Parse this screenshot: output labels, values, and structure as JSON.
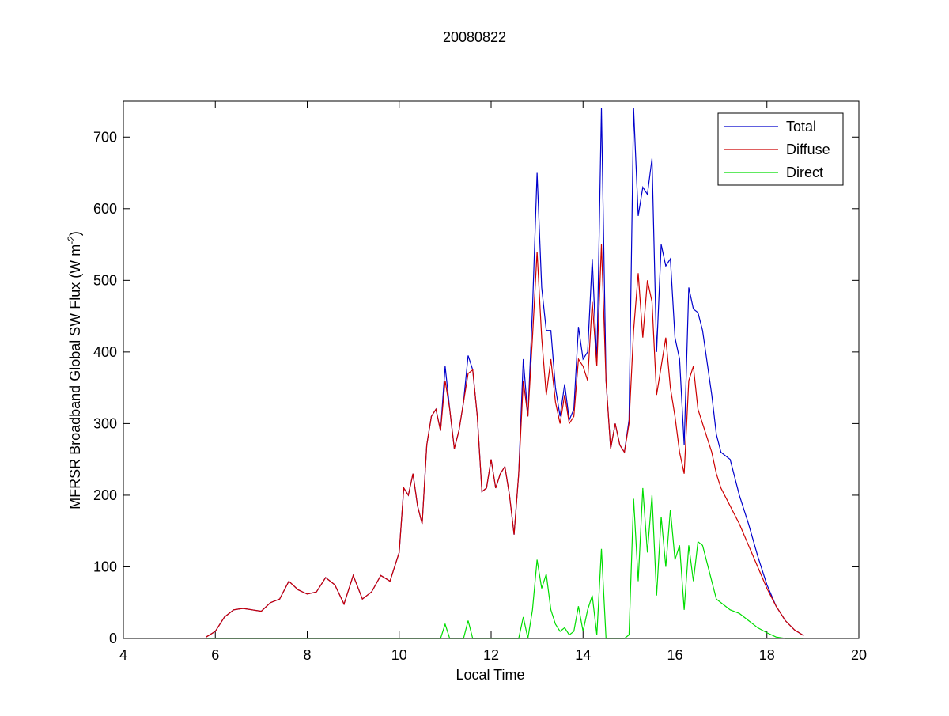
{
  "chart_data": {
    "type": "line",
    "title": "20080822",
    "xlabel": "Local Time",
    "ylabel": {
      "text": "MFRSR Broadband Global SW Flux (W m",
      "superscript": "-2",
      "suffix": ")"
    },
    "xlim": [
      4,
      20
    ],
    "xticks": [
      4,
      6,
      8,
      10,
      12,
      14,
      16,
      18,
      20
    ],
    "ylim": [
      0,
      750
    ],
    "yticks": [
      0,
      100,
      200,
      300,
      400,
      500,
      600,
      700
    ],
    "legend": "top-right",
    "x": [
      5.8,
      6.0,
      6.2,
      6.4,
      6.6,
      6.8,
      7.0,
      7.2,
      7.4,
      7.6,
      7.8,
      8.0,
      8.2,
      8.4,
      8.6,
      8.8,
      9.0,
      9.2,
      9.4,
      9.6,
      9.8,
      10.0,
      10.1,
      10.2,
      10.3,
      10.4,
      10.5,
      10.6,
      10.7,
      10.8,
      10.9,
      11.0,
      11.1,
      11.2,
      11.3,
      11.4,
      11.5,
      11.6,
      11.7,
      11.8,
      11.9,
      12.0,
      12.1,
      12.2,
      12.3,
      12.4,
      12.5,
      12.6,
      12.7,
      12.8,
      12.9,
      13.0,
      13.1,
      13.2,
      13.3,
      13.4,
      13.5,
      13.6,
      13.7,
      13.8,
      13.9,
      14.0,
      14.1,
      14.2,
      14.3,
      14.4,
      14.5,
      14.6,
      14.7,
      14.8,
      14.9,
      15.0,
      15.1,
      15.2,
      15.3,
      15.4,
      15.5,
      15.6,
      15.7,
      15.8,
      15.9,
      16.0,
      16.1,
      16.2,
      16.3,
      16.4,
      16.5,
      16.6,
      16.7,
      16.8,
      16.9,
      17.0,
      17.2,
      17.4,
      17.6,
      17.8,
      18.0,
      18.2,
      18.4,
      18.6,
      18.8
    ],
    "series": [
      {
        "name": "Total",
        "color": "#0000cc",
        "values": [
          2,
          10,
          30,
          40,
          42,
          40,
          38,
          50,
          55,
          80,
          68,
          62,
          65,
          85,
          75,
          48,
          88,
          55,
          65,
          88,
          80,
          120,
          210,
          200,
          230,
          185,
          160,
          270,
          310,
          320,
          290,
          380,
          320,
          265,
          290,
          330,
          395,
          375,
          310,
          205,
          210,
          250,
          210,
          230,
          240,
          200,
          145,
          230,
          390,
          310,
          460,
          650,
          490,
          430,
          430,
          350,
          310,
          355,
          305,
          320,
          435,
          390,
          400,
          530,
          385,
          740,
          360,
          265,
          300,
          270,
          260,
          305,
          740,
          590,
          630,
          620,
          670,
          400,
          550,
          520,
          530,
          420,
          390,
          270,
          490,
          460,
          455,
          430,
          385,
          340,
          285,
          260,
          250,
          200,
          160,
          115,
          75,
          45,
          25,
          12,
          4
        ]
      },
      {
        "name": "Diffuse",
        "color": "#cc0000",
        "values": [
          2,
          10,
          30,
          40,
          42,
          40,
          38,
          50,
          55,
          80,
          68,
          62,
          65,
          85,
          75,
          48,
          88,
          55,
          65,
          88,
          80,
          120,
          210,
          200,
          230,
          185,
          160,
          270,
          310,
          320,
          290,
          360,
          320,
          265,
          290,
          330,
          370,
          375,
          310,
          205,
          210,
          250,
          210,
          230,
          240,
          200,
          145,
          230,
          360,
          310,
          420,
          540,
          420,
          340,
          390,
          330,
          300,
          340,
          300,
          310,
          390,
          380,
          360,
          470,
          380,
          550,
          360,
          265,
          300,
          270,
          260,
          300,
          430,
          510,
          420,
          500,
          470,
          340,
          380,
          420,
          350,
          310,
          260,
          230,
          360,
          380,
          320,
          300,
          280,
          260,
          230,
          210,
          185,
          160,
          130,
          100,
          70,
          45,
          25,
          12,
          4
        ]
      },
      {
        "name": "Direct",
        "color": "#00dd00",
        "values": [
          0,
          0,
          0,
          0,
          0,
          0,
          0,
          0,
          0,
          0,
          0,
          0,
          0,
          0,
          0,
          0,
          0,
          0,
          0,
          0,
          0,
          0,
          0,
          0,
          0,
          0,
          0,
          0,
          0,
          0,
          0,
          20,
          0,
          0,
          0,
          0,
          25,
          0,
          0,
          0,
          0,
          0,
          0,
          0,
          0,
          0,
          0,
          0,
          30,
          0,
          40,
          110,
          70,
          90,
          40,
          20,
          10,
          15,
          5,
          10,
          45,
          10,
          40,
          60,
          5,
          125,
          0,
          0,
          0,
          0,
          0,
          5,
          195,
          80,
          210,
          120,
          200,
          60,
          170,
          100,
          180,
          110,
          130,
          40,
          130,
          80,
          135,
          130,
          105,
          80,
          55,
          50,
          40,
          35,
          25,
          15,
          8,
          2,
          0,
          0,
          0
        ]
      }
    ]
  }
}
